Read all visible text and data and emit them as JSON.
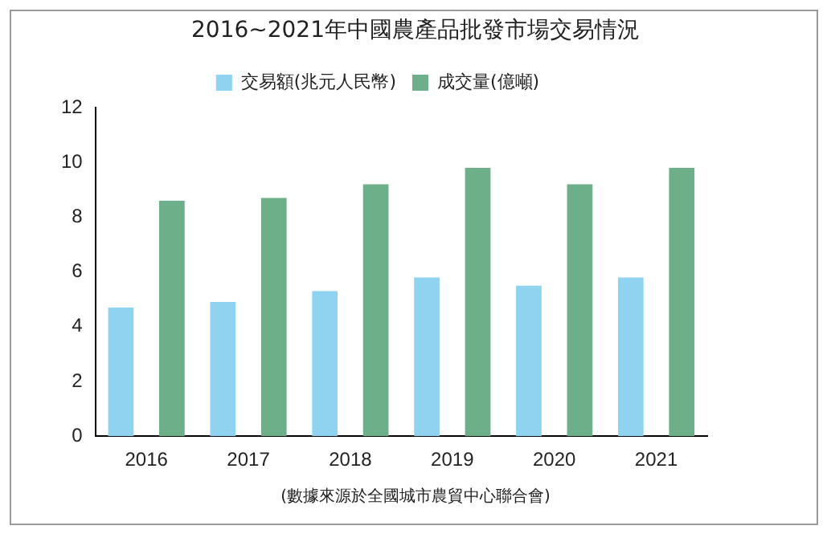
{
  "chart_data": {
    "type": "bar",
    "title": "2016~2021年中國農產品批發市場交易情況",
    "categories": [
      "2016",
      "2017",
      "2018",
      "2019",
      "2020",
      "2021"
    ],
    "series": [
      {
        "name": "交易額(兆元人民幣)",
        "color": "#8fd3f1",
        "values": [
          4.7,
          4.9,
          5.3,
          5.8,
          5.5,
          5.8
        ]
      },
      {
        "name": "成交量(億噸)",
        "color": "#6caf88",
        "values": [
          8.6,
          8.7,
          9.2,
          9.8,
          9.2,
          9.8
        ]
      }
    ],
    "ylim": [
      0,
      12
    ],
    "yticks": [
      0,
      2,
      4,
      6,
      8,
      10,
      12
    ],
    "grid": false,
    "legend": "top",
    "annotations": [
      "(數據來源於全國城市農貿中心聯合會)"
    ]
  }
}
